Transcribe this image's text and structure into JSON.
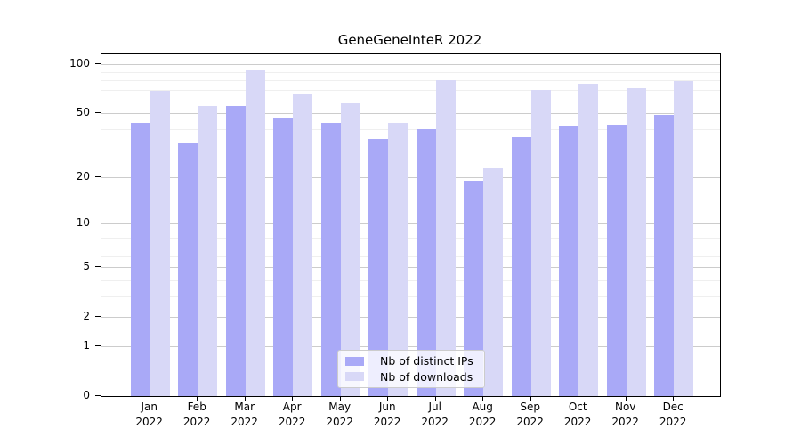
{
  "title": "GeneGeneInteR 2022",
  "legend": {
    "items": [
      {
        "label": "Nb of distinct IPs",
        "color": "#a9a9f7"
      },
      {
        "label": "Nb of downloads",
        "color": "#d8d8f7"
      }
    ]
  },
  "chart_data": {
    "type": "bar",
    "title": "GeneGeneInteR 2022",
    "categories": [
      "Jan\n2022",
      "Feb\n2022",
      "Mar\n2022",
      "Apr\n2022",
      "May\n2022",
      "Jun\n2022",
      "Jul\n2022",
      "Aug\n2022",
      "Sep\n2022",
      "Oct\n2022",
      "Nov\n2022",
      "Dec\n2022"
    ],
    "series": [
      {
        "name": "Nb of distinct IPs",
        "color": "#a9a9f7",
        "values": [
          44,
          33,
          56,
          47,
          44,
          35,
          40,
          19,
          36,
          42,
          43,
          49
        ]
      },
      {
        "name": "Nb of downloads",
        "color": "#d8d8f7",
        "values": [
          69,
          56,
          92,
          66,
          58,
          44,
          81,
          23,
          70,
          77,
          72,
          80
        ]
      }
    ],
    "xlabel": "",
    "ylabel": "",
    "yscale": "log1p",
    "ylim": [
      0,
      100
    ],
    "yticks_major": [
      0,
      1,
      2,
      5,
      10,
      20,
      50,
      100
    ],
    "yticks_minor_grid": [
      3,
      4,
      6,
      7,
      8,
      9,
      30,
      40,
      60,
      70,
      80,
      90
    ],
    "grid": true,
    "legend_position": "bottom-center",
    "colors": {
      "major_grid": "#cccccc",
      "minor_grid": "#efefef",
      "frame": "#000000"
    }
  }
}
